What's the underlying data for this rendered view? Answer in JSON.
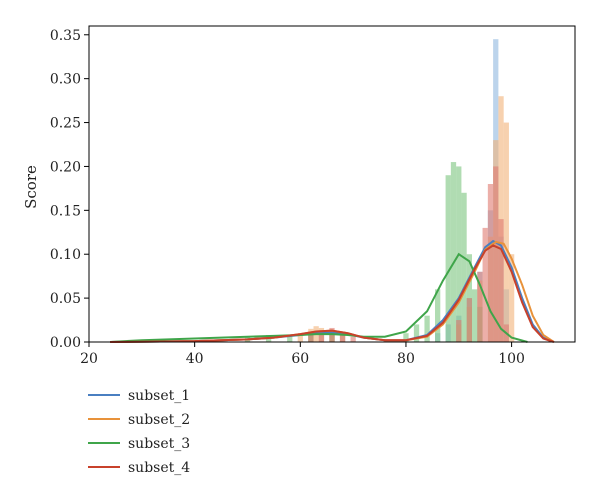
{
  "chart_data": {
    "type": "area",
    "title": "",
    "xlabel": "",
    "ylabel": "Score",
    "xlim": [
      20,
      112
    ],
    "ylim": [
      0,
      0.36
    ],
    "xticks": [
      20,
      40,
      60,
      80,
      100
    ],
    "yticks": [
      0.0,
      0.05,
      0.1,
      0.15,
      0.2,
      0.25,
      0.3,
      0.35
    ],
    "grid": false,
    "legend_placement": "below",
    "series": [
      {
        "name": "subset_1",
        "color": "#4a7fc1",
        "bar_color": "#8fb8e0",
        "curve": [
          [
            24,
            0
          ],
          [
            40,
            0.001
          ],
          [
            50,
            0.003
          ],
          [
            55,
            0.005
          ],
          [
            60,
            0.008
          ],
          [
            63,
            0.01
          ],
          [
            66,
            0.011
          ],
          [
            69,
            0.009
          ],
          [
            72,
            0.005
          ],
          [
            76,
            0.002
          ],
          [
            80,
            0.002
          ],
          [
            84,
            0.008
          ],
          [
            87,
            0.025
          ],
          [
            90,
            0.05
          ],
          [
            93,
            0.085
          ],
          [
            95,
            0.108
          ],
          [
            96.5,
            0.115
          ],
          [
            98,
            0.11
          ],
          [
            100,
            0.085
          ],
          [
            102,
            0.05
          ],
          [
            104,
            0.02
          ],
          [
            106,
            0.005
          ],
          [
            108,
            0
          ]
        ],
        "bins": [
          [
            62,
            0.008
          ],
          [
            64,
            0.01
          ],
          [
            66,
            0.012
          ],
          [
            68,
            0.008
          ],
          [
            86,
            0.01
          ],
          [
            88,
            0.02
          ],
          [
            90,
            0.03
          ],
          [
            92,
            0.05
          ],
          [
            94,
            0.08
          ],
          [
            96,
            0.15
          ],
          [
            97,
            0.345
          ],
          [
            98,
            0.12
          ],
          [
            99,
            0.06
          ]
        ]
      },
      {
        "name": "subset_2",
        "color": "#e8923a",
        "bar_color": "#f2b27a",
        "curve": [
          [
            24,
            0
          ],
          [
            40,
            0.001
          ],
          [
            50,
            0.003
          ],
          [
            55,
            0.005
          ],
          [
            60,
            0.009
          ],
          [
            63,
            0.012
          ],
          [
            66,
            0.013
          ],
          [
            69,
            0.01
          ],
          [
            72,
            0.005
          ],
          [
            76,
            0.002
          ],
          [
            80,
            0.002
          ],
          [
            84,
            0.006
          ],
          [
            87,
            0.02
          ],
          [
            90,
            0.045
          ],
          [
            93,
            0.08
          ],
          [
            95,
            0.105
          ],
          [
            97,
            0.114
          ],
          [
            98.5,
            0.112
          ],
          [
            100,
            0.095
          ],
          [
            102,
            0.065
          ],
          [
            104,
            0.03
          ],
          [
            106,
            0.008
          ],
          [
            108,
            0
          ]
        ],
        "bins": [
          [
            60,
            0.01
          ],
          [
            62,
            0.015
          ],
          [
            63,
            0.018
          ],
          [
            64,
            0.016
          ],
          [
            66,
            0.014
          ],
          [
            68,
            0.01
          ],
          [
            90,
            0.02
          ],
          [
            92,
            0.04
          ],
          [
            94,
            0.07
          ],
          [
            96,
            0.12
          ],
          [
            97,
            0.23
          ],
          [
            98,
            0.28
          ],
          [
            99,
            0.25
          ],
          [
            100,
            0.1
          ]
        ]
      },
      {
        "name": "subset_3",
        "color": "#3fa54a",
        "bar_color": "#7cc47f",
        "curve": [
          [
            24,
            0
          ],
          [
            30,
            0.002
          ],
          [
            40,
            0.004
          ],
          [
            50,
            0.006
          ],
          [
            55,
            0.007
          ],
          [
            60,
            0.008
          ],
          [
            63,
            0.009
          ],
          [
            66,
            0.009
          ],
          [
            69,
            0.008
          ],
          [
            72,
            0.006
          ],
          [
            76,
            0.006
          ],
          [
            80,
            0.012
          ],
          [
            84,
            0.035
          ],
          [
            87,
            0.07
          ],
          [
            90,
            0.1
          ],
          [
            92,
            0.092
          ],
          [
            94,
            0.065
          ],
          [
            96,
            0.035
          ],
          [
            98,
            0.015
          ],
          [
            100,
            0.005
          ],
          [
            103,
            0
          ]
        ],
        "bins": [
          [
            50,
            0.006
          ],
          [
            54,
            0.008
          ],
          [
            58,
            0.008
          ],
          [
            62,
            0.01
          ],
          [
            66,
            0.01
          ],
          [
            80,
            0.01
          ],
          [
            82,
            0.02
          ],
          [
            84,
            0.03
          ],
          [
            86,
            0.06
          ],
          [
            88,
            0.19
          ],
          [
            89,
            0.205
          ],
          [
            90,
            0.2
          ],
          [
            91,
            0.17
          ],
          [
            92,
            0.1
          ],
          [
            93,
            0.06
          ],
          [
            94,
            0.04
          ]
        ]
      },
      {
        "name": "subset_4",
        "color": "#c8412b",
        "bar_color": "#e07a70",
        "curve": [
          [
            24,
            0
          ],
          [
            40,
            0.001
          ],
          [
            50,
            0.003
          ],
          [
            55,
            0.005
          ],
          [
            60,
            0.009
          ],
          [
            63,
            0.012
          ],
          [
            66,
            0.013
          ],
          [
            69,
            0.01
          ],
          [
            72,
            0.005
          ],
          [
            76,
            0.002
          ],
          [
            80,
            0.002
          ],
          [
            84,
            0.007
          ],
          [
            87,
            0.022
          ],
          [
            90,
            0.048
          ],
          [
            93,
            0.083
          ],
          [
            95,
            0.104
          ],
          [
            96.5,
            0.11
          ],
          [
            98,
            0.106
          ],
          [
            100,
            0.08
          ],
          [
            102,
            0.045
          ],
          [
            104,
            0.017
          ],
          [
            106,
            0.004
          ],
          [
            108,
            0
          ]
        ],
        "bins": [
          [
            62,
            0.01
          ],
          [
            64,
            0.012
          ],
          [
            66,
            0.016
          ],
          [
            68,
            0.012
          ],
          [
            70,
            0.006
          ],
          [
            90,
            0.025
          ],
          [
            92,
            0.05
          ],
          [
            94,
            0.08
          ],
          [
            95,
            0.13
          ],
          [
            96,
            0.18
          ],
          [
            97,
            0.2
          ],
          [
            98,
            0.14
          ],
          [
            99,
            0.02
          ]
        ]
      }
    ]
  }
}
